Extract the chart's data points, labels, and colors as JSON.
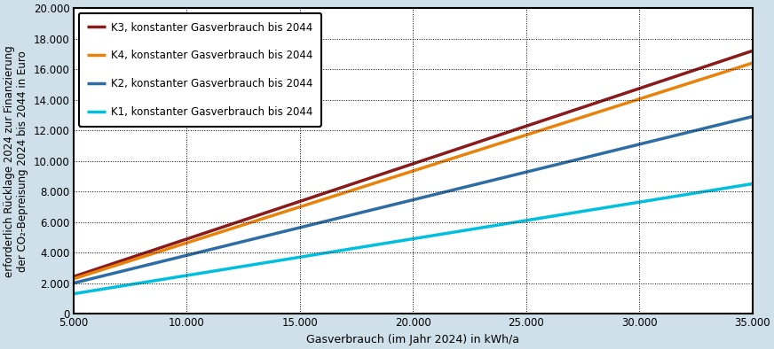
{
  "xlabel": "Gasverbrauch (im Jahr 2024) in kWh/a",
  "ylabel": "erforderlich Rücklage 2024 zur Finanzierung\nder CO₂-Bepreisung 2024 bis 2044 in Euro",
  "xlim": [
    5000,
    35000
  ],
  "ylim": [
    0,
    20000
  ],
  "xticks": [
    5000,
    10000,
    15000,
    20000,
    25000,
    30000,
    35000
  ],
  "yticks": [
    0,
    2000,
    4000,
    6000,
    8000,
    10000,
    12000,
    14000,
    16000,
    18000,
    20000
  ],
  "background_color": "#cfe0ea",
  "plot_bg_color": "#ffffff",
  "grid_color": "#000000",
  "lines": [
    {
      "label": "K3, konstanter Gasverbrauch bis 2044",
      "color": "#8B1A1A",
      "linewidth": 2.5,
      "x0": 5000,
      "y0": 2420,
      "x1": 35000,
      "y1": 17200
    },
    {
      "label": "K4, konstanter Gasverbrauch bis 2044",
      "color": "#E8820A",
      "linewidth": 2.5,
      "x0": 5000,
      "y0": 2280,
      "x1": 35000,
      "y1": 16400
    },
    {
      "label": "K2, konstanter Gasverbrauch bis 2044",
      "color": "#2E6DA4",
      "linewidth": 2.5,
      "x0": 5000,
      "y0": 2000,
      "x1": 35000,
      "y1": 12900
    },
    {
      "label": "K1, konstanter Gasverbrauch bis 2044",
      "color": "#00BFDF",
      "linewidth": 2.5,
      "x0": 5000,
      "y0": 1300,
      "x1": 35000,
      "y1": 8500
    }
  ],
  "legend_fontsize": 8.5,
  "axis_fontsize": 8.5,
  "tick_fontsize": 8.5,
  "xlabel_fontsize": 9
}
